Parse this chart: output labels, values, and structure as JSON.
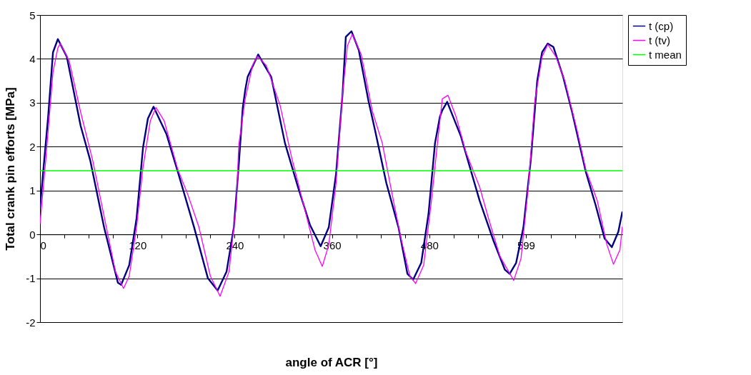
{
  "chart_data": {
    "type": "line",
    "xlabel": "angle of ACR [°]",
    "ylabel": "Total crank pin efforts [MPa]",
    "xlim": [
      0,
      718
    ],
    "ylim": [
      -2,
      5
    ],
    "xticks": [
      0,
      {
        "value": 30,
        "label": null
      },
      {
        "value": 60,
        "label": null
      },
      {
        "value": 90,
        "label": null
      },
      120,
      {
        "value": 150,
        "label": null
      },
      {
        "value": 180,
        "label": null
      },
      {
        "value": 210,
        "label": null
      },
      240,
      {
        "value": 270,
        "label": null
      },
      {
        "value": 300,
        "label": null
      },
      {
        "value": 330,
        "label": null
      },
      360,
      {
        "value": 390,
        "label": null
      },
      {
        "value": 420,
        "label": null
      },
      {
        "value": 450,
        "label": null
      },
      480,
      {
        "value": 510,
        "label": null
      },
      {
        "value": 540,
        "label": null
      },
      {
        "value": 570,
        "label": null
      },
      599,
      {
        "value": 630,
        "label": null
      },
      {
        "value": 660,
        "label": null
      },
      {
        "value": 690,
        "label": null
      }
    ],
    "yticks": [
      -2,
      -1,
      0,
      1,
      2,
      3,
      4,
      5
    ],
    "grid": "y",
    "legend": "right",
    "marker": "none",
    "line_style": "solid",
    "series": [
      {
        "name": "t (cp)",
        "color": "#000080",
        "x": [
          0,
          10,
          16,
          22,
          33,
          50,
          62,
          79,
          96,
          100,
          110,
          119,
          127,
          133,
          140,
          156,
          170,
          190,
          207,
          219,
          230,
          239,
          245,
          250,
          253,
          256,
          269,
          285,
          302,
          319,
          333,
          346,
          356,
          365,
          373,
          377,
          384,
          393,
          405,
          413,
          427,
          442,
          453,
          460,
          470,
          479,
          487,
          493,
          496,
          502,
          519,
          530,
          542,
          559,
          573,
          579,
          587,
          596,
          605,
          613,
          619,
          626,
          633,
          645,
          656,
          673,
          685,
          696,
          705,
          713,
          718
        ],
        "values": [
          0.62,
          2.68,
          4.15,
          4.45,
          4.05,
          2.48,
          1.68,
          0.16,
          -1.1,
          -1.15,
          -0.7,
          0.36,
          1.98,
          2.64,
          2.91,
          2.28,
          1.42,
          0.16,
          -1.0,
          -1.28,
          -0.85,
          0.16,
          1.58,
          2.89,
          3.29,
          3.59,
          4.1,
          3.59,
          2.08,
          1.02,
          0.21,
          -0.27,
          0.16,
          1.38,
          3.2,
          4.5,
          4.63,
          4.2,
          3.04,
          2.38,
          1.17,
          0.16,
          -0.9,
          -1.03,
          -0.65,
          0.47,
          2.08,
          2.68,
          2.83,
          3.02,
          2.23,
          1.53,
          0.77,
          -0.14,
          -0.8,
          -0.9,
          -0.65,
          0.16,
          1.68,
          3.5,
          4.15,
          4.35,
          4.27,
          3.59,
          2.79,
          1.42,
          0.67,
          -0.09,
          -0.29,
          0.06,
          0.52
        ]
      },
      {
        "name": "t (tv)",
        "color": "#ff00ff",
        "x": [
          0,
          7,
          16,
          22,
          25,
          36,
          50,
          65,
          79,
          93,
          103,
          110,
          119,
          127,
          136,
          143,
          153,
          170,
          182,
          196,
          210,
          222,
          233,
          242,
          245,
          253,
          262,
          268,
          279,
          296,
          310,
          325,
          339,
          348,
          356,
          365,
          373,
          379,
          385,
          396,
          410,
          422,
          433,
          445,
          456,
          463,
          473,
          482,
          490,
          496,
          503,
          513,
          525,
          542,
          553,
          567,
          584,
          593,
          602,
          610,
          619,
          626,
          636,
          647,
          662,
          673,
          687,
          699,
          707,
          715,
          718
        ],
        "values": [
          0.24,
          1.68,
          3.7,
          4.25,
          4.35,
          3.95,
          2.79,
          1.68,
          0.41,
          -0.85,
          -1.23,
          -0.95,
          0.16,
          1.53,
          2.59,
          2.89,
          2.59,
          1.47,
          0.92,
          0.16,
          -0.95,
          -1.41,
          -0.85,
          0.67,
          2.03,
          3.09,
          3.85,
          4.06,
          3.85,
          2.94,
          1.77,
          0.67,
          -0.35,
          -0.73,
          -0.24,
          1.17,
          3.2,
          4.3,
          4.56,
          4.1,
          2.79,
          2.08,
          1.02,
          -0.09,
          -0.95,
          -1.12,
          -0.7,
          0.67,
          2.08,
          3.09,
          3.17,
          2.68,
          1.88,
          1.08,
          0.36,
          -0.5,
          -1.05,
          -0.55,
          1.08,
          3.04,
          4.05,
          4.33,
          4.05,
          3.5,
          2.38,
          1.47,
          0.77,
          -0.24,
          -0.68,
          -0.35,
          0.18
        ]
      }
    ],
    "ref_lines": [
      {
        "axis": "y",
        "value": 1.45,
        "label": "t mean",
        "color": "#00ff00"
      }
    ]
  }
}
